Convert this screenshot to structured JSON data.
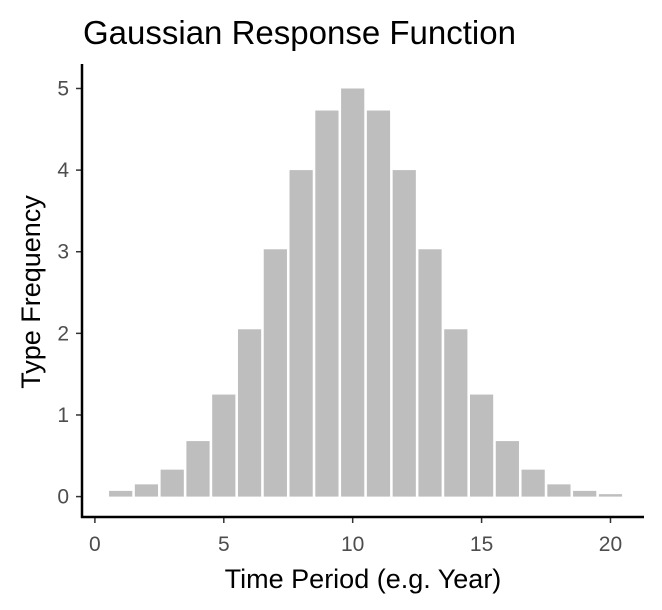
{
  "chart_data": {
    "type": "bar",
    "title": "Gaussian Response Function",
    "xlabel": "Time Period (e.g. Year)",
    "ylabel": "Type Frequency",
    "x": [
      1,
      2,
      3,
      4,
      5,
      6,
      7,
      8,
      9,
      10,
      11,
      12,
      13,
      14,
      15,
      16,
      17,
      18,
      19,
      20
    ],
    "values": [
      0.07,
      0.15,
      0.33,
      0.68,
      1.25,
      2.05,
      3.03,
      4.0,
      4.73,
      5.0,
      4.73,
      4.0,
      3.03,
      2.05,
      1.25,
      0.68,
      0.33,
      0.15,
      0.07,
      0.03
    ],
    "xlim": [
      -0.5,
      21.3
    ],
    "ylim": [
      -0.25,
      5.3
    ],
    "xticks": [
      0,
      5,
      10,
      15,
      20
    ],
    "xtick_labels": [
      "0",
      "5",
      "10",
      "15",
      "20"
    ],
    "yticks": [
      0,
      1,
      2,
      3,
      4,
      5
    ],
    "ytick_labels": [
      "0",
      "1",
      "2",
      "3",
      "4",
      "5"
    ],
    "grid": false,
    "legend": "none",
    "bar_color": "#bebebe",
    "axis_color": "#000000",
    "tick_label_color": "#4d4d4d"
  }
}
